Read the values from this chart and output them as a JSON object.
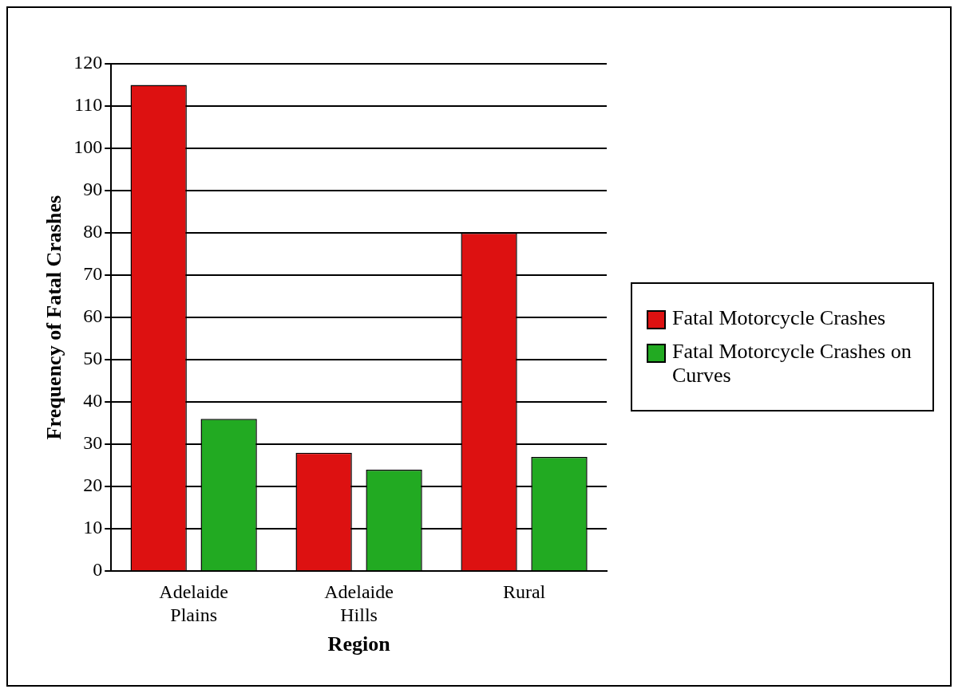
{
  "chart_data": {
    "type": "bar",
    "xlabel": "Region",
    "ylabel": "Frequency of Fatal Crashes",
    "categories": [
      "Adelaide Plains",
      "Adelaide Hills",
      "Rural"
    ],
    "series": [
      {
        "name": "Fatal Motorcycle Crashes",
        "color": "#dd1111",
        "values": [
          115,
          28,
          80
        ]
      },
      {
        "name": "Fatal Motorcycle Crashes on Curves",
        "color": "#22aa22",
        "values": [
          36,
          24,
          27
        ]
      }
    ],
    "ylim": [
      0,
      120
    ],
    "yticks": [
      0,
      10,
      20,
      30,
      40,
      50,
      60,
      70,
      80,
      90,
      100,
      110,
      120
    ],
    "grid": "y",
    "legend": "right"
  }
}
